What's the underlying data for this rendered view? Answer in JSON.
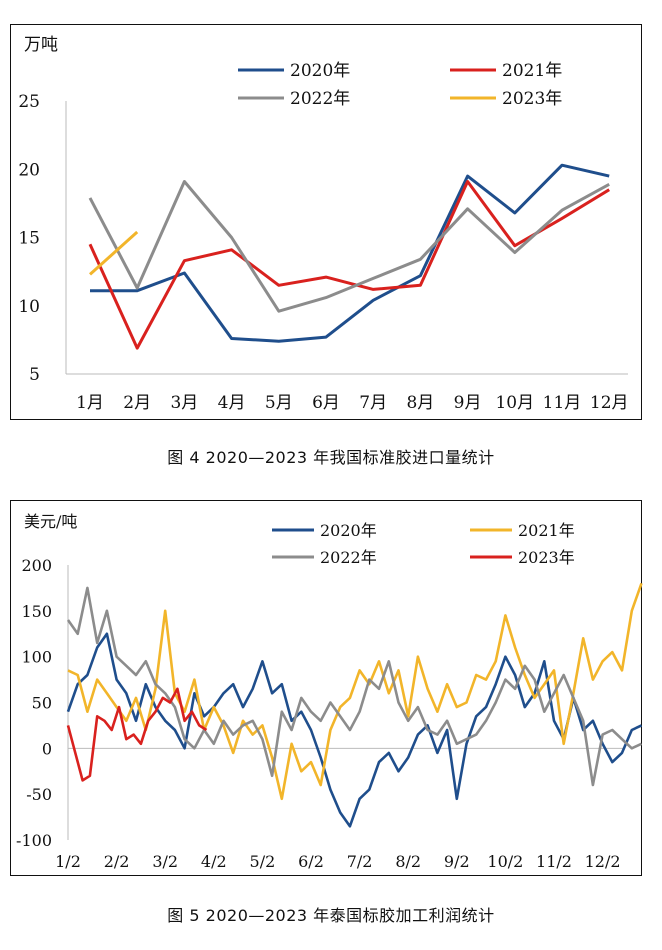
{
  "chart_data": [
    {
      "type": "line",
      "ylabel": "万吨",
      "caption": "图 4  2020—2023 年我国标准胶进口量统计",
      "ylim": [
        5,
        25
      ],
      "yticks": [
        5,
        10,
        15,
        20,
        25
      ],
      "categories": [
        "1月",
        "2月",
        "3月",
        "4月",
        "5月",
        "6月",
        "7月",
        "8月",
        "9月",
        "10月",
        "11月",
        "12月"
      ],
      "legend_placement": "top",
      "series": [
        {
          "name": "2020年",
          "color": "#1f4e8c",
          "values": [
            11.1,
            11.1,
            12.4,
            7.6,
            7.4,
            7.7,
            10.4,
            12.2,
            19.5,
            16.8,
            20.3,
            19.5
          ]
        },
        {
          "name": "2021年",
          "color": "#d9211e",
          "values": [
            14.5,
            6.9,
            13.3,
            14.1,
            11.5,
            12.1,
            11.2,
            11.5,
            19.1,
            14.4,
            16.4,
            18.5
          ]
        },
        {
          "name": "2022年",
          "color": "#8c8c8c",
          "values": [
            17.9,
            11.3,
            19.1,
            15.0,
            9.6,
            10.6,
            12.0,
            13.4,
            17.1,
            13.9,
            17.0,
            18.9
          ]
        },
        {
          "name": "2023年",
          "color": "#f2b52a",
          "values": [
            12.3,
            15.4,
            null,
            null,
            null,
            null,
            null,
            null,
            null,
            null,
            null,
            null
          ]
        }
      ]
    },
    {
      "type": "line",
      "ylabel": "美元/吨",
      "caption": "图 5  2020—2023 年泰国标胶加工利润统计",
      "ylim": [
        -100,
        200
      ],
      "yticks": [
        -100,
        -50,
        0,
        50,
        100,
        150,
        200
      ],
      "xticks": [
        "1/2",
        "2/2",
        "3/2",
        "4/2",
        "5/2",
        "6/2",
        "7/2",
        "8/2",
        "9/2",
        "10/2",
        "11/2",
        "12/2"
      ],
      "legend_placement": "top",
      "series": [
        {
          "name": "2020年",
          "color": "#1f4e8c",
          "x": [
            0,
            0.2,
            0.4,
            0.6,
            0.8,
            1.0,
            1.2,
            1.4,
            1.6,
            1.8,
            2.0,
            2.2,
            2.4,
            2.6,
            2.8,
            3.0,
            3.2,
            3.4,
            3.6,
            3.8,
            4.0,
            4.2,
            4.4,
            4.6,
            4.8,
            5.0,
            5.2,
            5.4,
            5.6,
            5.8,
            6.0,
            6.2,
            6.4,
            6.6,
            6.8,
            7.0,
            7.2,
            7.4,
            7.6,
            7.8,
            8.0,
            8.2,
            8.4,
            8.6,
            8.8,
            9.0,
            9.2,
            9.4,
            9.6,
            9.8,
            10.0,
            10.2,
            10.4,
            10.6,
            10.8,
            11.0,
            11.2,
            11.4,
            11.6,
            11.8
          ],
          "values": [
            40,
            70,
            80,
            110,
            125,
            75,
            60,
            30,
            70,
            45,
            30,
            20,
            0,
            60,
            35,
            45,
            60,
            70,
            45,
            65,
            95,
            60,
            70,
            30,
            40,
            20,
            -10,
            -45,
            -70,
            -85,
            -55,
            -45,
            -15,
            -5,
            -25,
            -10,
            15,
            25,
            -5,
            20,
            -55,
            5,
            35,
            45,
            70,
            100,
            80,
            45,
            60,
            95,
            30,
            10,
            55,
            20,
            30,
            5,
            -15,
            -5,
            20,
            25
          ]
        },
        {
          "name": "2021年",
          "color": "#f2b52a",
          "x": [
            0,
            0.2,
            0.4,
            0.6,
            0.8,
            1.0,
            1.2,
            1.4,
            1.6,
            1.8,
            2.0,
            2.2,
            2.4,
            2.6,
            2.8,
            3.0,
            3.2,
            3.4,
            3.6,
            3.8,
            4.0,
            4.2,
            4.4,
            4.6,
            4.8,
            5.0,
            5.2,
            5.4,
            5.6,
            5.8,
            6.0,
            6.2,
            6.4,
            6.6,
            6.8,
            7.0,
            7.2,
            7.4,
            7.6,
            7.8,
            8.0,
            8.2,
            8.4,
            8.6,
            8.8,
            9.0,
            9.2,
            9.4,
            9.6,
            9.8,
            10.0,
            10.2,
            10.4,
            10.6,
            10.8,
            11.0,
            11.2,
            11.4,
            11.6,
            11.8
          ],
          "values": [
            85,
            80,
            40,
            75,
            60,
            45,
            30,
            55,
            20,
            65,
            150,
            60,
            40,
            75,
            20,
            45,
            25,
            -5,
            30,
            15,
            25,
            -10,
            -55,
            5,
            -25,
            -15,
            -40,
            20,
            45,
            55,
            85,
            70,
            95,
            60,
            85,
            35,
            100,
            65,
            40,
            70,
            45,
            50,
            80,
            75,
            95,
            145,
            110,
            80,
            55,
            70,
            85,
            5,
            60,
            120,
            75,
            95,
            105,
            85,
            150,
            180
          ]
        },
        {
          "name": "2022年",
          "color": "#8c8c8c",
          "x": [
            0,
            0.2,
            0.4,
            0.6,
            0.8,
            1.0,
            1.2,
            1.4,
            1.6,
            1.8,
            2.0,
            2.2,
            2.4,
            2.6,
            2.8,
            3.0,
            3.2,
            3.4,
            3.6,
            3.8,
            4.0,
            4.2,
            4.4,
            4.6,
            4.8,
            5.0,
            5.2,
            5.4,
            5.6,
            5.8,
            6.0,
            6.2,
            6.4,
            6.6,
            6.8,
            7.0,
            7.2,
            7.4,
            7.6,
            7.8,
            8.0,
            8.2,
            8.4,
            8.6,
            8.8,
            9.0,
            9.2,
            9.4,
            9.6,
            9.8,
            10.0,
            10.2,
            10.4,
            10.6,
            10.8,
            11.0,
            11.2,
            11.4,
            11.6,
            11.8
          ],
          "values": [
            140,
            125,
            175,
            115,
            150,
            100,
            90,
            80,
            95,
            70,
            60,
            45,
            10,
            0,
            20,
            5,
            30,
            15,
            25,
            30,
            10,
            -30,
            40,
            20,
            55,
            40,
            30,
            50,
            35,
            20,
            40,
            75,
            65,
            95,
            50,
            30,
            45,
            20,
            15,
            30,
            5,
            10,
            15,
            30,
            50,
            75,
            65,
            90,
            75,
            40,
            60,
            80,
            55,
            30,
            -40,
            15,
            20,
            10,
            0,
            5
          ]
        },
        {
          "name": "2023年",
          "color": "#d9211e",
          "x": [
            0,
            0.15,
            0.3,
            0.45,
            0.6,
            0.75,
            0.9,
            1.05,
            1.2,
            1.35,
            1.5,
            1.65,
            1.8,
            1.95,
            2.1,
            2.25,
            2.4,
            2.55,
            2.7,
            2.85
          ],
          "values": [
            25,
            -5,
            -35,
            -30,
            35,
            30,
            20,
            45,
            10,
            15,
            5,
            30,
            40,
            55,
            50,
            65,
            30,
            40,
            25,
            20
          ]
        }
      ]
    }
  ],
  "chart1": {
    "unit": "万吨",
    "caption": "图 4  2020—2023 年我国标准胶进口量统计"
  },
  "chart2": {
    "unit": "美元/吨",
    "caption": "图 5  2020—2023 年泰国标胶加工利润统计"
  }
}
